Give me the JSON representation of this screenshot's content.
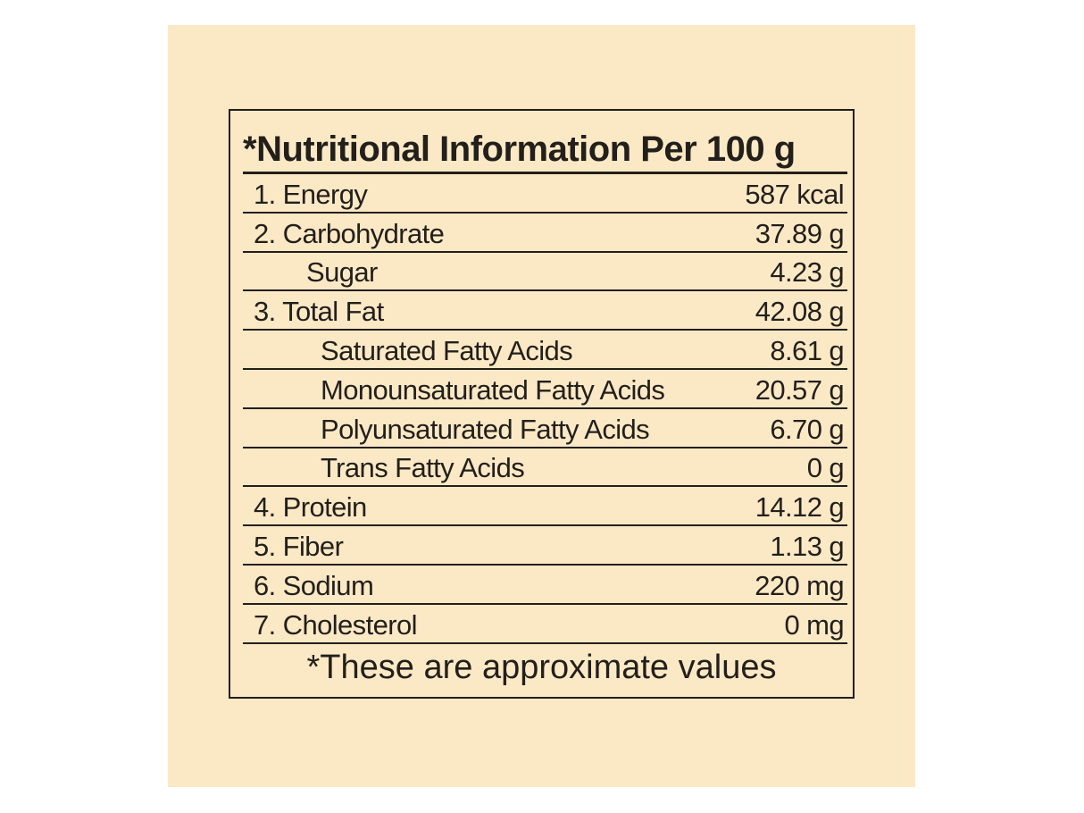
{
  "colors": {
    "panel_background": "#fbe9c6",
    "ink": "#231f1a"
  },
  "nutrition_label": {
    "title": "*Nutritional Information Per 100 g",
    "rows": [
      {
        "name": "1. Energy",
        "value": "587 kcal",
        "level": 0
      },
      {
        "name": "2. Carbohydrate",
        "value": "37.89 g",
        "level": 0
      },
      {
        "name": "Sugar",
        "value": "4.23 g",
        "level": 1
      },
      {
        "name": "3. Total Fat",
        "value": "42.08 g",
        "level": 0
      },
      {
        "name": "Saturated Fatty Acids",
        "value": "8.61 g",
        "level": 2
      },
      {
        "name": "Monounsaturated Fatty Acids",
        "value": "20.57 g",
        "level": 2
      },
      {
        "name": "Polyunsaturated Fatty Acids",
        "value": "6.70 g",
        "level": 2
      },
      {
        "name": "Trans Fatty Acids",
        "value": "0 g",
        "level": 2
      },
      {
        "name": "4. Protein",
        "value": "14.12 g",
        "level": 0
      },
      {
        "name": "5. Fiber",
        "value": "1.13 g",
        "level": 0
      },
      {
        "name": "6. Sodium",
        "value": "220 mg",
        "level": 0
      },
      {
        "name": "7. Cholesterol",
        "value": "0 mg",
        "level": 0
      }
    ],
    "footnote": "*These are approximate values"
  }
}
